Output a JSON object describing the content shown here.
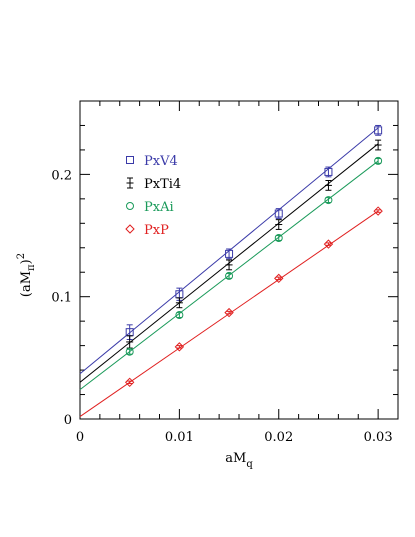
{
  "chart_data": {
    "type": "scatter",
    "title": "",
    "xlabel": {
      "base": "aM",
      "sub": "q"
    },
    "ylabel": {
      "prefix": "(aM",
      "sub": "π",
      "suffix": ")",
      "sup": "2"
    },
    "xlim": [
      0,
      0.032
    ],
    "ylim": [
      0,
      0.26
    ],
    "xticks": [
      0,
      0.01,
      0.02,
      0.03
    ],
    "xtick_labels": [
      "0",
      "0.01",
      "0.02",
      "0.03"
    ],
    "yticks": [
      0,
      0.1,
      0.2
    ],
    "ytick_labels": [
      "0",
      "0.1",
      "0.2"
    ],
    "grid": false,
    "legend_position": "top-left",
    "series": [
      {
        "name": "PxV4",
        "color": "#3a3aa8",
        "marker": "square",
        "x": [
          0.005,
          0.01,
          0.015,
          0.02,
          0.025,
          0.03
        ],
        "y": [
          0.071,
          0.102,
          0.135,
          0.168,
          0.202,
          0.236
        ],
        "yerr": [
          0.006,
          0.005,
          0.004,
          0.004,
          0.004,
          0.004
        ],
        "fit": {
          "intercept": 0.037,
          "slope": 6.7
        }
      },
      {
        "name": "PxTi4",
        "color": "#000000",
        "marker": "cross",
        "x": [
          0.005,
          0.01,
          0.015,
          0.02,
          0.025,
          0.03
        ],
        "y": [
          0.063,
          0.095,
          0.126,
          0.159,
          0.191,
          0.224
        ],
        "yerr": [
          0.005,
          0.004,
          0.004,
          0.004,
          0.004,
          0.004
        ],
        "fit": {
          "intercept": 0.03,
          "slope": 6.5
        }
      },
      {
        "name": "PxAi",
        "color": "#1a9a5a",
        "marker": "circle",
        "x": [
          0.005,
          0.01,
          0.015,
          0.02,
          0.025,
          0.03
        ],
        "y": [
          0.055,
          0.085,
          0.117,
          0.148,
          0.179,
          0.211
        ],
        "yerr": [
          0.002,
          0.002,
          0.002,
          0.002,
          0.002,
          0.002
        ],
        "fit": {
          "intercept": 0.024,
          "slope": 6.23
        }
      },
      {
        "name": "PxP",
        "color": "#e02020",
        "marker": "diamond",
        "x": [
          0.005,
          0.01,
          0.015,
          0.02,
          0.025,
          0.03
        ],
        "y": [
          0.03,
          0.059,
          0.087,
          0.115,
          0.143,
          0.17
        ],
        "yerr": [
          0.001,
          0.001,
          0.001,
          0.001,
          0.001,
          0.001
        ],
        "fit": {
          "intercept": 0.002,
          "slope": 5.6
        }
      }
    ]
  }
}
